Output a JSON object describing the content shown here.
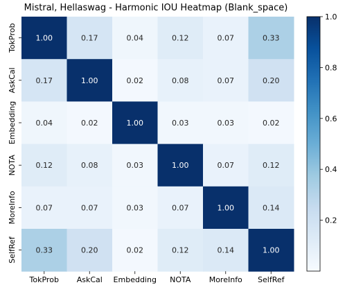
{
  "chart_data": {
    "type": "heatmap",
    "title": "Mistral, Hellaswag - Harmonic IOU Heatmap (Blank_space)",
    "x_labels": [
      "TokProb",
      "AskCal",
      "Embedding",
      "NOTA",
      "MoreInfo",
      "SelfRef"
    ],
    "y_labels": [
      "TokProb",
      "AskCal",
      "Embedding",
      "NOTA",
      "MoreInfo",
      "SelfRef"
    ],
    "values": [
      [
        1.0,
        0.17,
        0.04,
        0.12,
        0.07,
        0.33
      ],
      [
        0.17,
        1.0,
        0.02,
        0.08,
        0.07,
        0.2
      ],
      [
        0.04,
        0.02,
        1.0,
        0.03,
        0.03,
        0.02
      ],
      [
        0.12,
        0.08,
        0.03,
        1.0,
        0.07,
        0.12
      ],
      [
        0.07,
        0.07,
        0.03,
        0.07,
        1.0,
        0.14
      ],
      [
        0.33,
        0.2,
        0.02,
        0.12,
        0.14,
        1.0
      ]
    ],
    "value_labels": [
      [
        "1.00",
        "0.17",
        "0.04",
        "0.12",
        "0.07",
        "0.33"
      ],
      [
        "0.17",
        "1.00",
        "0.02",
        "0.08",
        "0.07",
        "0.20"
      ],
      [
        "0.04",
        "0.02",
        "1.00",
        "0.03",
        "0.03",
        "0.02"
      ],
      [
        "0.12",
        "0.08",
        "0.03",
        "1.00",
        "0.07",
        "0.12"
      ],
      [
        "0.07",
        "0.07",
        "0.03",
        "0.07",
        "1.00",
        "0.14"
      ],
      [
        "0.33",
        "0.20",
        "0.02",
        "0.12",
        "0.14",
        "1.00"
      ]
    ],
    "colormap": "Blues",
    "colorbar": {
      "range": [
        0.0,
        1.0
      ],
      "ticks": [
        0.2,
        0.4,
        0.6,
        0.8,
        1.0
      ],
      "tick_labels": [
        "0.2",
        "0.4",
        "0.6",
        "0.8",
        "1.0"
      ]
    },
    "grid": false
  }
}
